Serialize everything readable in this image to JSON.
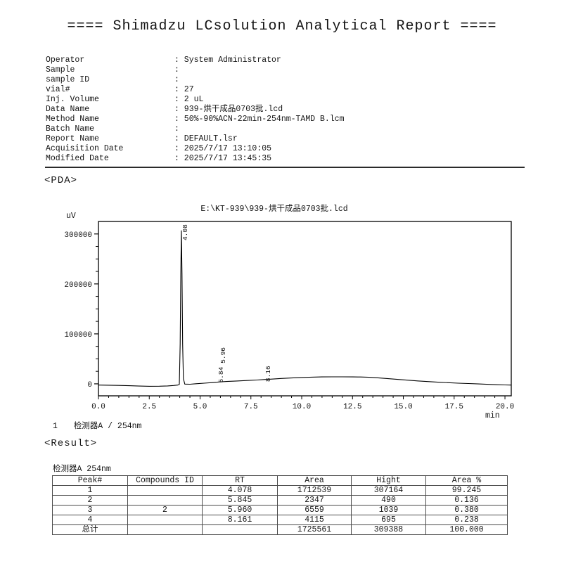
{
  "report": {
    "title": "==== Shimadzu LCsolution Analytical Report ====",
    "separator": ": ",
    "fields": [
      {
        "label": "Operator",
        "value": "System Administrator"
      },
      {
        "label": "Sample",
        "value": ""
      },
      {
        "label": "sample ID",
        "value": ""
      },
      {
        "label": "vial#",
        "value": "27"
      },
      {
        "label": "Inj. Volume",
        "value": "2 uL"
      },
      {
        "label": "Data Name",
        "value": "939-烘干成品0703批.lcd"
      },
      {
        "label": "Method Name",
        "value": "50%-90%ACN-22min-254nm-TAMD B.lcm"
      },
      {
        "label": "Batch Name",
        "value": ""
      },
      {
        "label": "Report Name",
        "value": "DEFAULT.lsr"
      },
      {
        "label": "Acquisition Date",
        "value": "2025/7/17 13:10:05"
      },
      {
        "label": "Modified Date",
        "value": "2025/7/17 13:45:35"
      }
    ]
  },
  "pda_section": {
    "heading": "<PDA>"
  },
  "chart_data": {
    "type": "line",
    "title": "E:\\KT-939\\939-烘干成品0703批.lcd",
    "xlabel": "min",
    "ylabel": "uV",
    "xlim": [
      0,
      20.31
    ],
    "ylim": [
      -24000,
      325000
    ],
    "grid": false,
    "x_minor_step": 0.5,
    "y_minor_step": 25000,
    "x_ticks": [
      {
        "v": 0,
        "label": "0.0"
      },
      {
        "v": 2.5,
        "label": "2.5"
      },
      {
        "v": 5,
        "label": "5.0"
      },
      {
        "v": 7.5,
        "label": "7.5"
      },
      {
        "v": 10,
        "label": "10.0"
      },
      {
        "v": 12.5,
        "label": "12.5"
      },
      {
        "v": 15,
        "label": "15.0"
      },
      {
        "v": 17.5,
        "label": "17.5"
      },
      {
        "v": 20,
        "label": "20.0"
      }
    ],
    "y_ticks": [
      {
        "v": 0,
        "label": "0"
      },
      {
        "v": 100000,
        "label": "100000"
      },
      {
        "v": 200000,
        "label": "200000"
      },
      {
        "v": 300000,
        "label": "300000"
      }
    ],
    "trace": [
      [
        0.0,
        -2500
      ],
      [
        0.5,
        -2800
      ],
      [
        1.0,
        -3200
      ],
      [
        1.5,
        -3800
      ],
      [
        2.0,
        -4400
      ],
      [
        2.5,
        -4800
      ],
      [
        3.0,
        -4700
      ],
      [
        3.4,
        -4100
      ],
      [
        3.7,
        -3300
      ],
      [
        3.9,
        -2500
      ],
      [
        3.98,
        -1000
      ],
      [
        4.02,
        80000
      ],
      [
        4.05,
        220000
      ],
      [
        4.08,
        307000
      ],
      [
        4.11,
        220000
      ],
      [
        4.14,
        80000
      ],
      [
        4.18,
        10000
      ],
      [
        4.25,
        -500
      ],
      [
        4.5,
        -800
      ],
      [
        4.8,
        200
      ],
      [
        5.2,
        1300
      ],
      [
        5.6,
        2400
      ],
      [
        5.84,
        3300
      ],
      [
        5.96,
        3800
      ],
      [
        6.3,
        4700
      ],
      [
        6.8,
        5700
      ],
      [
        7.3,
        6700
      ],
      [
        7.8,
        7700
      ],
      [
        8.16,
        8600
      ],
      [
        8.6,
        9700
      ],
      [
        9.0,
        10700
      ],
      [
        9.5,
        11800
      ],
      [
        10.0,
        12700
      ],
      [
        10.5,
        13400
      ],
      [
        11.0,
        13800
      ],
      [
        11.5,
        14000
      ],
      [
        12.0,
        14000
      ],
      [
        12.5,
        13900
      ],
      [
        12.9,
        13700
      ],
      [
        13.3,
        13100
      ],
      [
        13.7,
        12100
      ],
      [
        14.2,
        10600
      ],
      [
        14.7,
        9000
      ],
      [
        15.2,
        7400
      ],
      [
        15.7,
        5900
      ],
      [
        16.2,
        4500
      ],
      [
        16.7,
        3300
      ],
      [
        17.2,
        2300
      ],
      [
        17.7,
        1400
      ],
      [
        18.2,
        600
      ],
      [
        18.7,
        -200
      ],
      [
        19.2,
        -1000
      ],
      [
        19.6,
        -1700
      ],
      [
        20.0,
        -2200
      ],
      [
        20.31,
        -2500
      ]
    ],
    "peak_labels": [
      {
        "label": "4.08",
        "x": 4.08,
        "y_uv": 287000
      },
      {
        "label": "5.84",
        "x": 5.84,
        "y_uv": 2000
      },
      {
        "label": "5.96",
        "x": 5.96,
        "y_uv": 41000
      },
      {
        "label": "8.16",
        "x": 8.16,
        "y_uv": 4000
      }
    ],
    "legend": {
      "index": "1",
      "label": "检测器A / 254nm"
    }
  },
  "result_section": {
    "heading": "<Result>",
    "detector_title": "检测器A 254nm",
    "table": {
      "headers": [
        "Peak#",
        "Compounds ID",
        "RT",
        "Area",
        "Hight",
        "Area %"
      ],
      "rows": [
        [
          "1",
          "",
          "4.078",
          "1712539",
          "307164",
          "99.245"
        ],
        [
          "2",
          "",
          "5.845",
          "2347",
          "490",
          "0.136"
        ],
        [
          "3",
          "2",
          "5.960",
          "6559",
          "1039",
          "0.380"
        ],
        [
          "4",
          "",
          "8.161",
          "4115",
          "695",
          "0.238"
        ],
        [
          "总计",
          "",
          "",
          "1725561",
          "309388",
          "100.000"
        ]
      ],
      "total_row_label": "总计"
    }
  },
  "colors": {
    "text": "#141414",
    "plot_line": "#000000",
    "frame": "#000000",
    "table_border": "#4a4a4a"
  }
}
